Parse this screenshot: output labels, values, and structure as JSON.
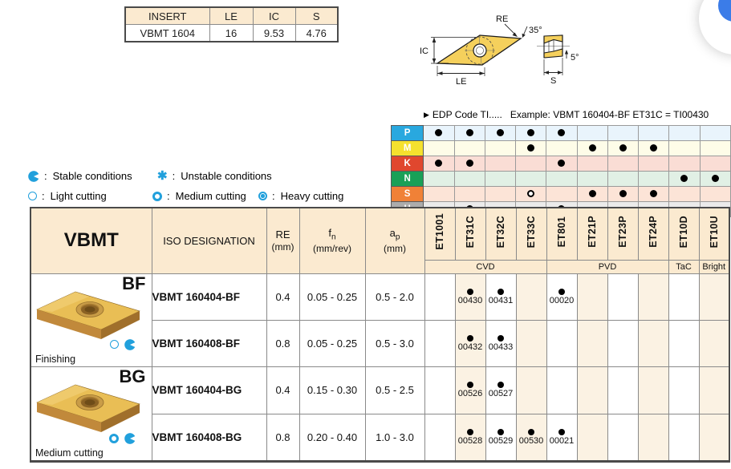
{
  "palette": {
    "accent": "#21A0DC",
    "header_cream": "#FBEAD0",
    "cell_cream": "#FBF2E3",
    "gold": "#E9BE55",
    "gold_light": "#F2D179",
    "gold_dark": "#C1893B",
    "gold_side": "#A06F2B",
    "drawing_yellow": "#F5D05C",
    "corner_blue": "#3B7CE8"
  },
  "spec_table": {
    "headers": [
      "INSERT",
      "LE",
      "IC",
      "S"
    ],
    "row": [
      "VBMT 1604",
      "16",
      "9.53",
      "4.76"
    ]
  },
  "drawing": {
    "labels": {
      "re": "RE",
      "angle35": "35°",
      "ic": "IC",
      "le": "LE",
      "s": "S",
      "angle5": "5°"
    }
  },
  "edp_note": {
    "arrow": "▶",
    "text": "EDP Code TI.....",
    "example": "Example: VBMT 160404-BF ET31C = TI00430"
  },
  "legend": {
    "stable": {
      "label": "Stable conditions"
    },
    "unstable": {
      "label": "Unstable conditions"
    },
    "light": {
      "label": "Light cutting"
    },
    "medium": {
      "label": "Medium cutting"
    },
    "heavy": {
      "label": "Heavy cutting"
    }
  },
  "material_grid": {
    "classes": [
      {
        "code": "P",
        "color": "#29A8DF",
        "row_bg": "#E9F4FC",
        "marks": [
          "filled",
          "filled",
          "filled",
          "filled",
          "filled",
          "",
          "",
          "",
          "",
          ""
        ]
      },
      {
        "code": "M",
        "color": "#F5E12E",
        "row_bg": "#FEFCE8",
        "marks": [
          "",
          "",
          "",
          "filled",
          "",
          "filled",
          "filled",
          "filled",
          "",
          ""
        ]
      },
      {
        "code": "K",
        "color": "#E0472E",
        "row_bg": "#FADDD5",
        "marks": [
          "filled",
          "filled",
          "",
          "",
          "filled",
          "",
          "",
          "",
          "",
          ""
        ]
      },
      {
        "code": "N",
        "color": "#19A057",
        "row_bg": "#E1F0E5",
        "marks": [
          "",
          "",
          "",
          "",
          "",
          "",
          "",
          "",
          "filled",
          "filled"
        ]
      },
      {
        "code": "S",
        "color": "#F08137",
        "row_bg": "#FCE4D7",
        "marks": [
          "",
          "",
          "",
          "open",
          "",
          "filled",
          "filled",
          "filled",
          "",
          ""
        ]
      },
      {
        "code": "H",
        "color": "#ACACAC",
        "row_bg": "#EBEBEB",
        "marks": [
          "",
          "open",
          "",
          "",
          "open",
          "",
          "",
          "",
          "",
          ""
        ]
      }
    ]
  },
  "catalog": {
    "title": "VBMT",
    "columns": {
      "iso": "ISO DESIGNATION",
      "re": "RE",
      "re_unit": "(mm)",
      "fn_base": "f",
      "fn_sub": "n",
      "fn_unit": "(mm/rev)",
      "ap_base": "a",
      "ap_sub": "p",
      "ap_unit": "(mm)"
    },
    "grades": [
      "ET1001",
      "ET31C",
      "ET32C",
      "ET33C",
      "ET801",
      "ET21P",
      "ET23P",
      "ET24P",
      "ET10D",
      "ET10U"
    ],
    "coatings": [
      {
        "label": "CVD",
        "span": 4
      },
      {
        "label": "PVD",
        "span": 4
      },
      {
        "label": "TaC",
        "span": 1
      },
      {
        "label": "Bright",
        "span": 1
      }
    ],
    "groups": [
      {
        "code": "BF",
        "app": "Finishing",
        "icons": [
          "light-cutting-icon",
          "stable-conditions-icon"
        ]
      },
      {
        "code": "BG",
        "app": "Medium cutting",
        "icons": [
          "medium-cutting-icon",
          "stable-conditions-icon"
        ]
      }
    ],
    "rows": [
      {
        "group": 0,
        "designation": "VBMT 160404-BF",
        "re": "0.4",
        "fn": "0.05 - 0.25",
        "ap": "0.5 - 2.0",
        "edp": [
          "",
          "00430",
          "00431",
          "",
          "00020",
          "",
          "",
          "",
          "",
          ""
        ]
      },
      {
        "group": 0,
        "designation": "VBMT 160408-BF",
        "re": "0.8",
        "fn": "0.05 - 0.25",
        "ap": "0.5 - 3.0",
        "edp": [
          "",
          "00432",
          "00433",
          "",
          "",
          "",
          "",
          "",
          "",
          ""
        ]
      },
      {
        "group": 1,
        "designation": "VBMT 160404-BG",
        "re": "0.4",
        "fn": "0.15 - 0.30",
        "ap": "0.5 - 2.5",
        "edp": [
          "",
          "00526",
          "00527",
          "",
          "",
          "",
          "",
          "",
          "",
          ""
        ]
      },
      {
        "group": 1,
        "designation": "VBMT 160408-BG",
        "re": "0.8",
        "fn": "0.20 - 0.40",
        "ap": "1.0 - 3.0",
        "edp": [
          "",
          "00528",
          "00529",
          "00530",
          "00021",
          "",
          "",
          "",
          "",
          ""
        ]
      }
    ]
  }
}
